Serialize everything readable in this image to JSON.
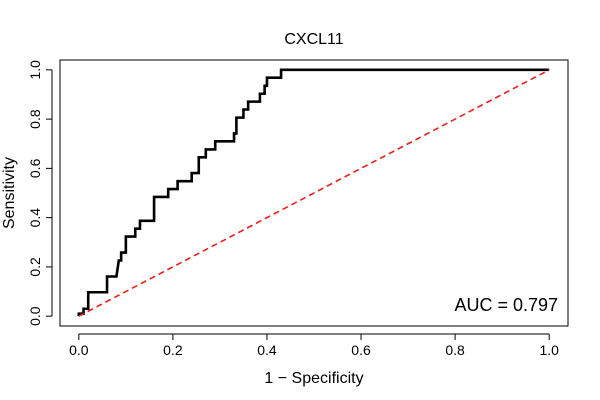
{
  "chart_data": {
    "type": "line",
    "title": "CXCL11",
    "xlabel": "1 − Specificity",
    "ylabel": "Sensitivity",
    "xlim": [
      -0.04,
      1.04
    ],
    "ylim": [
      -0.04,
      1.04
    ],
    "xticks": [
      0.0,
      0.2,
      0.4,
      0.6,
      0.8,
      1.0
    ],
    "yticks": [
      0.0,
      0.2,
      0.4,
      0.6,
      0.8,
      1.0
    ],
    "xtick_labels": [
      "0.0",
      "0.2",
      "0.4",
      "0.6",
      "0.8",
      "1.0"
    ],
    "ytick_labels": [
      "0.0",
      "0.2",
      "0.4",
      "0.6",
      "0.8",
      "1.0"
    ],
    "grid": false,
    "annotation": "AUC = 0.797",
    "series": [
      {
        "style": "step",
        "color": "#000000",
        "points": [
          [
            0.0,
            0.0
          ],
          [
            0.0,
            0.01
          ],
          [
            0.01,
            0.01
          ],
          [
            0.01,
            0.03
          ],
          [
            0.02,
            0.03
          ],
          [
            0.02,
            0.065
          ],
          [
            0.02,
            0.097
          ],
          [
            0.06,
            0.097
          ],
          [
            0.06,
            0.161
          ],
          [
            0.08,
            0.161
          ],
          [
            0.085,
            0.226
          ],
          [
            0.09,
            0.226
          ],
          [
            0.09,
            0.258
          ],
          [
            0.1,
            0.258
          ],
          [
            0.1,
            0.323
          ],
          [
            0.12,
            0.323
          ],
          [
            0.12,
            0.355
          ],
          [
            0.13,
            0.355
          ],
          [
            0.13,
            0.387
          ],
          [
            0.16,
            0.387
          ],
          [
            0.16,
            0.484
          ],
          [
            0.19,
            0.484
          ],
          [
            0.19,
            0.516
          ],
          [
            0.21,
            0.516
          ],
          [
            0.21,
            0.548
          ],
          [
            0.24,
            0.548
          ],
          [
            0.24,
            0.581
          ],
          [
            0.255,
            0.581
          ],
          [
            0.255,
            0.645
          ],
          [
            0.27,
            0.645
          ],
          [
            0.27,
            0.677
          ],
          [
            0.29,
            0.677
          ],
          [
            0.29,
            0.71
          ],
          [
            0.33,
            0.71
          ],
          [
            0.33,
            0.742
          ],
          [
            0.335,
            0.742
          ],
          [
            0.335,
            0.806
          ],
          [
            0.35,
            0.806
          ],
          [
            0.35,
            0.839
          ],
          [
            0.36,
            0.839
          ],
          [
            0.36,
            0.871
          ],
          [
            0.385,
            0.871
          ],
          [
            0.385,
            0.903
          ],
          [
            0.395,
            0.903
          ],
          [
            0.395,
            0.935
          ],
          [
            0.4,
            0.935
          ],
          [
            0.4,
            0.968
          ],
          [
            0.43,
            0.968
          ],
          [
            0.43,
            1.0
          ],
          [
            1.0,
            1.0
          ]
        ]
      },
      {
        "style": "dashed",
        "color": "#e8201a",
        "points": [
          [
            0.0,
            0.0
          ],
          [
            1.0,
            1.0
          ]
        ]
      }
    ]
  }
}
